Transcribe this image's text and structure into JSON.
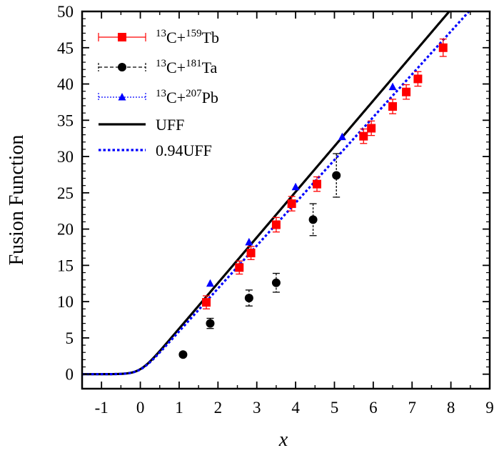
{
  "chart_data": {
    "type": "scatter",
    "xlabel": "x",
    "ylabel": "Fusion Function",
    "xlim": [
      -1.5,
      9
    ],
    "ylim": [
      -2,
      50
    ],
    "xticks": [
      -1,
      0,
      1,
      2,
      3,
      4,
      5,
      6,
      7,
      8,
      9
    ],
    "yticks": [
      0,
      5,
      10,
      15,
      20,
      25,
      30,
      35,
      40,
      45,
      50
    ],
    "legend_position": "top-left",
    "series": [
      {
        "name": "13C+159Tb",
        "legend": {
          "pre": "13",
          "mid1": "C+",
          "sup2": "159",
          "post": "Tb"
        },
        "style": "square-errorbar",
        "color": "#ff0000",
        "points": [
          {
            "x": 1.7,
            "y": 9.9,
            "err": 0.9
          },
          {
            "x": 2.55,
            "y": 14.7,
            "err": 0.9
          },
          {
            "x": 2.85,
            "y": 16.7,
            "err": 0.9
          },
          {
            "x": 3.5,
            "y": 20.6,
            "err": 1.0
          },
          {
            "x": 3.9,
            "y": 23.5,
            "err": 1.0
          },
          {
            "x": 4.55,
            "y": 26.2,
            "err": 1.0
          },
          {
            "x": 5.75,
            "y": 32.8,
            "err": 1.0
          },
          {
            "x": 5.95,
            "y": 33.9,
            "err": 1.0
          },
          {
            "x": 6.5,
            "y": 36.9,
            "err": 1.0
          },
          {
            "x": 6.85,
            "y": 38.9,
            "err": 1.0
          },
          {
            "x": 7.15,
            "y": 40.7,
            "err": 1.0
          },
          {
            "x": 7.8,
            "y": 45.0,
            "err": 1.2
          }
        ]
      },
      {
        "name": "13C+181Ta",
        "legend": {
          "pre": "13",
          "mid1": "C+",
          "sup2": "181",
          "post": "Ta"
        },
        "style": "circle-errorbar",
        "color": "#000000",
        "points": [
          {
            "x": 1.1,
            "y": 2.7,
            "err": 0.3
          },
          {
            "x": 1.8,
            "y": 7.0,
            "err": 0.7
          },
          {
            "x": 2.8,
            "y": 10.5,
            "err": 1.1
          },
          {
            "x": 3.5,
            "y": 12.6,
            "err": 1.3
          },
          {
            "x": 4.45,
            "y": 21.3,
            "err": 2.2
          },
          {
            "x": 5.05,
            "y": 27.4,
            "err": 3.0
          }
        ]
      },
      {
        "name": "13C+207Pb",
        "legend": {
          "pre": "13",
          "mid1": "C+",
          "sup2": "207",
          "post": "Pb"
        },
        "style": "triangle",
        "color": "#0000ff",
        "points": [
          {
            "x": 1.8,
            "y": 12.5
          },
          {
            "x": 2.8,
            "y": 18.2
          },
          {
            "x": 4.0,
            "y": 25.8
          },
          {
            "x": 5.2,
            "y": 32.7
          },
          {
            "x": 6.5,
            "y": 39.6
          }
        ]
      },
      {
        "name": "UFF",
        "style": "solid-line",
        "color": "#000000",
        "factor": 1.0
      },
      {
        "name": "0.94UFF",
        "style": "dotted-line",
        "color": "#0000ff",
        "factor": 0.94
      }
    ]
  }
}
